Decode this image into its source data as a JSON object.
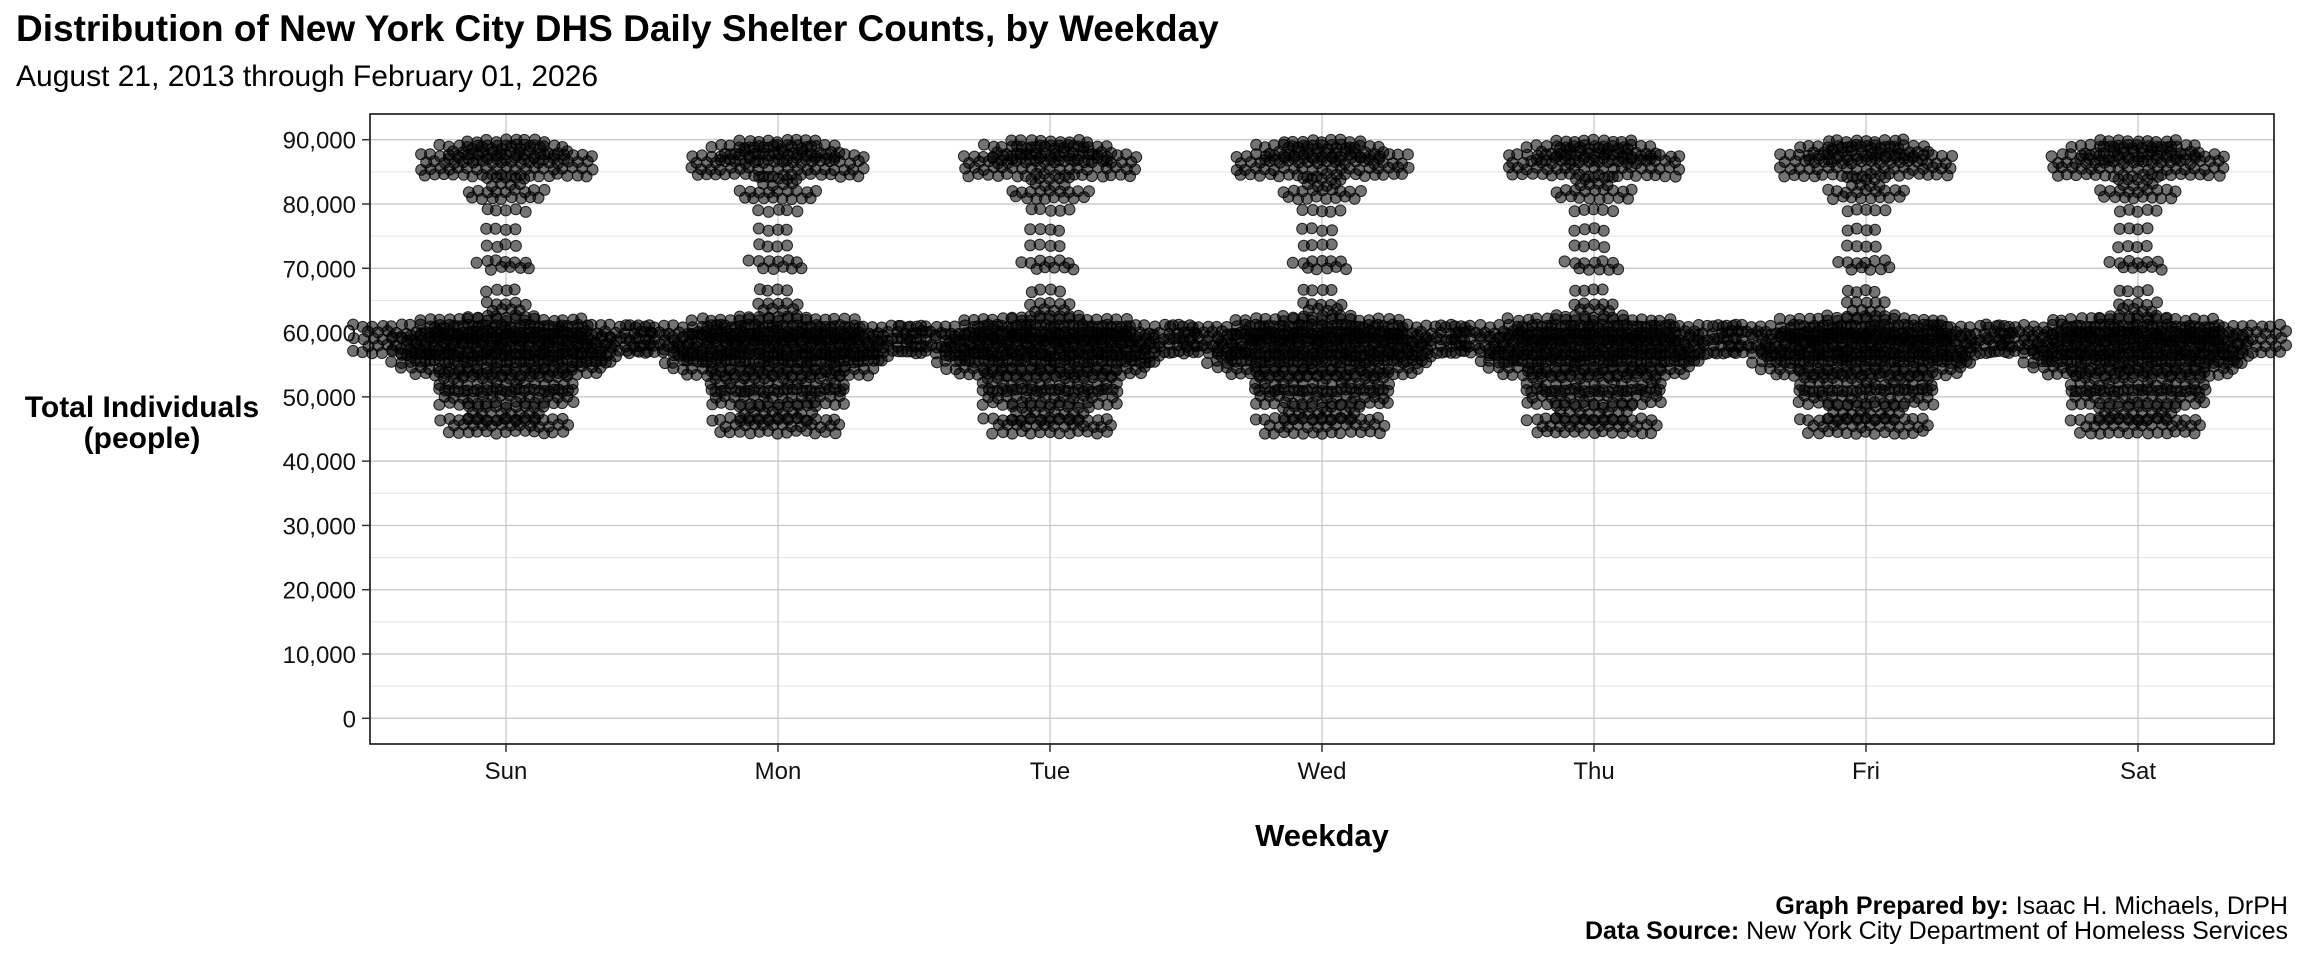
{
  "chart_data": {
    "type": "scatter",
    "variant": "beeswarm",
    "title": "Distribution of New York City DHS Daily Shelter Counts, by Weekday",
    "subtitle": "August 21, 2013 through February 01, 2026",
    "xlabel": "Weekday",
    "ylabel_line1": "Total Individuals",
    "ylabel_line2": "(people)",
    "categories": [
      "Sun",
      "Mon",
      "Tue",
      "Wed",
      "Thu",
      "Fri",
      "Sat"
    ],
    "ylim": [
      -4000,
      94000
    ],
    "yticks": [
      0,
      10000,
      20000,
      30000,
      40000,
      50000,
      60000,
      70000,
      80000,
      90000
    ],
    "ytick_labels": [
      "0",
      "10,000",
      "20,000",
      "30,000",
      "40,000",
      "50,000",
      "60,000",
      "70,000",
      "80,000",
      "90,000"
    ],
    "grid": true,
    "legend": "none",
    "point_color": "#000000",
    "point_opacity": 0.55,
    "distribution": {
      "note_min": 45000,
      "note_max": 89500,
      "clusters": [
        {
          "center": 45500,
          "count": 40
        },
        {
          "center": 47500,
          "count": 25
        },
        {
          "center": 50000,
          "count": 45
        },
        {
          "center": 52500,
          "count": 60
        },
        {
          "center": 55000,
          "count": 85
        },
        {
          "center": 57500,
          "count": 120
        },
        {
          "center": 59000,
          "count": 160
        },
        {
          "center": 60500,
          "count": 70
        },
        {
          "center": 62500,
          "count": 8
        },
        {
          "center": 64000,
          "count": 10
        },
        {
          "center": 66500,
          "count": 4
        },
        {
          "center": 70500,
          "count": 12
        },
        {
          "center": 73500,
          "count": 4
        },
        {
          "center": 76000,
          "count": 4
        },
        {
          "center": 79000,
          "count": 5
        },
        {
          "center": 81500,
          "count": 18
        },
        {
          "center": 83500,
          "count": 10
        },
        {
          "center": 86000,
          "count": 75
        },
        {
          "center": 88000,
          "count": 40
        },
        {
          "center": 89300,
          "count": 18
        }
      ]
    }
  },
  "caption": {
    "prepared_key": "Graph Prepared by:",
    "prepared_value": " Isaac H. Michaels, DrPH",
    "source_key": "Data Source:",
    "source_value": " New York City Department of Homeless Services"
  }
}
